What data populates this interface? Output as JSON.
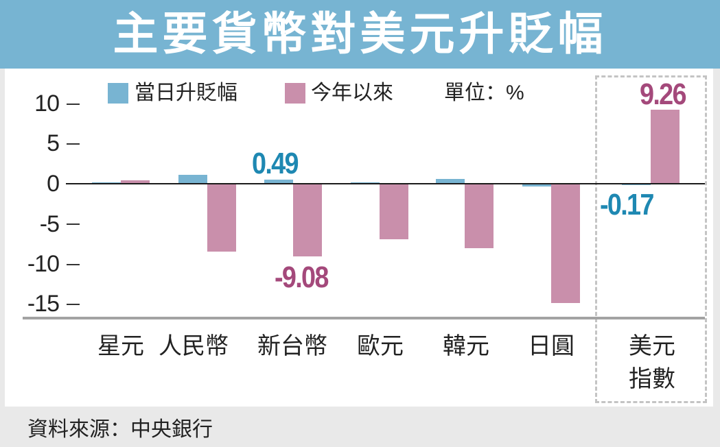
{
  "header": {
    "title": "主要貨幣對美元升貶幅"
  },
  "legend": {
    "items": [
      {
        "label": "當日升貶幅",
        "color": "#78b4d2"
      },
      {
        "label": "今年以來",
        "color": "#c98fab"
      }
    ],
    "unit": "單位：%"
  },
  "y_axis": {
    "ticks": [
      "10",
      "5",
      "0",
      "-5",
      "-10",
      "-15"
    ]
  },
  "x_tick_labels": [
    "星元",
    "人民幣",
    "新台幣",
    "歐元",
    "韓元",
    "日圓",
    "美元\n指數"
  ],
  "footer": {
    "source": "資料來源：中央銀行"
  },
  "colors": {
    "title_bar": "#77b4d2",
    "daily_bar": "#78b4d2",
    "ytd_bar": "#c98fab",
    "daily_label": "#1e88b2",
    "ytd_label": "#a4497b"
  },
  "chart_data": {
    "type": "bar",
    "title": "主要貨幣對美元升貶幅",
    "xlabel": "",
    "ylabel": "",
    "unit": "%",
    "categories": [
      "星元",
      "人民幣",
      "新台幣",
      "歐元",
      "韓元",
      "日圓",
      "美元指數"
    ],
    "series": [
      {
        "name": "當日升貶幅",
        "color": "#78b4d2",
        "values": [
          0.2,
          1.1,
          0.49,
          0.1,
          0.6,
          -0.37,
          -0.17
        ]
      },
      {
        "name": "今年以來",
        "color": "#c98fab",
        "values": [
          0.4,
          -8.5,
          -9.08,
          -6.9,
          -8.0,
          -14.9,
          9.26
        ]
      }
    ],
    "yticks": [
      10,
      5,
      0,
      -5,
      -10,
      -15
    ],
    "ylim": [
      -16,
      11
    ],
    "grid": false,
    "legend_position": "top",
    "annotations": [
      {
        "text": "0.49",
        "category": "新台幣",
        "series": "當日升貶幅"
      },
      {
        "text": "-9.08",
        "category": "新台幣",
        "series": "今年以來"
      },
      {
        "text": "9.26",
        "category": "美元指數",
        "series": "今年以來"
      },
      {
        "text": "-0.17",
        "category": "美元指數",
        "series": "當日升貶幅"
      }
    ],
    "highlight_box": "美元指數"
  }
}
